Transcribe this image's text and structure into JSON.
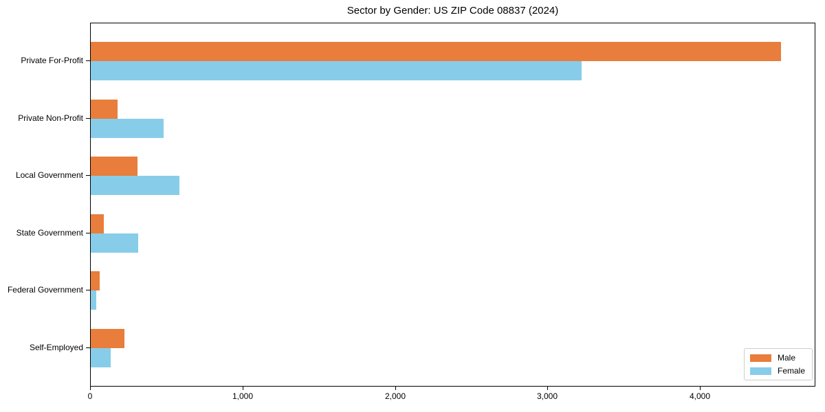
{
  "chart_data": {
    "type": "bar",
    "orientation": "horizontal",
    "title": "Sector by Gender: US ZIP Code 08837 (2024)",
    "categories": [
      "Private For-Profit",
      "Private Non-Profit",
      "Local Government",
      "State Government",
      "Federal Government",
      "Self-Employed"
    ],
    "series": [
      {
        "name": "Male",
        "color": "#e87d3c",
        "values": [
          4525,
          175,
          305,
          85,
          60,
          220
        ]
      },
      {
        "name": "Female",
        "color": "#87cde9",
        "values": [
          3220,
          480,
          580,
          310,
          38,
          130
        ]
      }
    ],
    "xlabel": "",
    "ylabel": "",
    "xlim": [
      0,
      4748
    ],
    "xticks": [
      0,
      1000,
      2000,
      3000,
      4000
    ],
    "xtick_labels": [
      "0",
      "1,000",
      "2,000",
      "3,000",
      "4,000"
    ],
    "grid": false,
    "legend": {
      "position": "lower right",
      "entries": [
        "Male",
        "Female"
      ]
    }
  }
}
